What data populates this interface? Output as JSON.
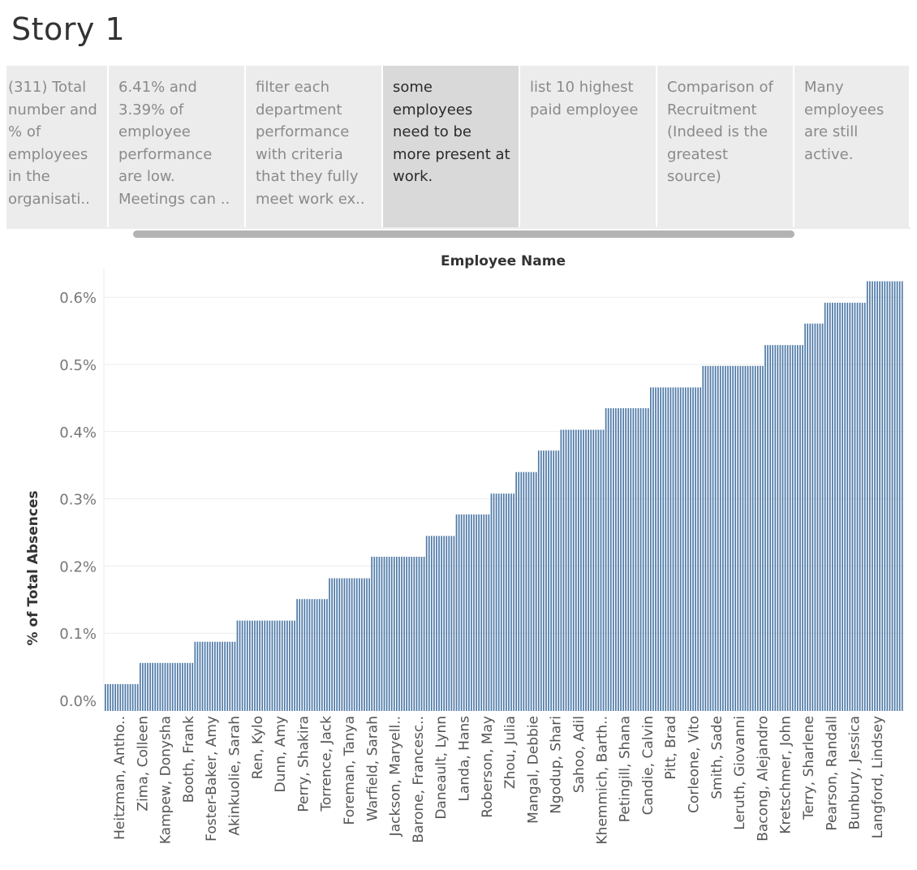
{
  "story": {
    "title": "Story 1",
    "points": [
      {
        "text": "(311) Total number and % of employees in the organisati..",
        "active": false
      },
      {
        "text": "6.41% and 3.39% of employee performance are low. Meetings can ..",
        "active": false
      },
      {
        "text": "filter each department performance with criteria that they fully meet work ex..",
        "active": false
      },
      {
        "text": "some employees need to be more present at work.",
        "active": true
      },
      {
        "text": "list 10 highest paid employee",
        "active": false
      },
      {
        "text": "Comparison of Recruitment (Indeed is the greatest source)",
        "active": false
      },
      {
        "text": "Many employees are still active.",
        "active": false
      }
    ]
  },
  "colors": {
    "bar": "#4e79a7",
    "grid": "#ececec",
    "nav_bg": "#ececec",
    "nav_active": "#d9d9d9"
  },
  "chart_data": {
    "type": "bar",
    "title": "",
    "xlabel": "Employee Name",
    "ylabel": "% of Total Absences",
    "ylim": [
      0,
      0.0066
    ],
    "yticks": [
      {
        "value": 0.0,
        "label": "0.0%"
      },
      {
        "value": 0.001,
        "label": "0.1%"
      },
      {
        "value": 0.002,
        "label": "0.2%"
      },
      {
        "value": 0.003,
        "label": "0.3%"
      },
      {
        "value": 0.004,
        "label": "0.4%"
      },
      {
        "value": 0.005,
        "label": "0.5%"
      },
      {
        "value": 0.006,
        "label": "0.6%"
      }
    ],
    "grid": true,
    "bar_groups": [
      {
        "value": 0.000315,
        "count": 14
      },
      {
        "value": 0.00063,
        "count": 22
      },
      {
        "value": 0.000945,
        "count": 17
      },
      {
        "value": 0.00126,
        "count": 24
      },
      {
        "value": 0.00158,
        "count": 13
      },
      {
        "value": 0.00189,
        "count": 17
      },
      {
        "value": 0.00221,
        "count": 22
      },
      {
        "value": 0.00252,
        "count": 12
      },
      {
        "value": 0.00284,
        "count": 14
      },
      {
        "value": 0.00315,
        "count": 10
      },
      {
        "value": 0.00347,
        "count": 9
      },
      {
        "value": 0.00379,
        "count": 9
      },
      {
        "value": 0.0041,
        "count": 18
      },
      {
        "value": 0.00442,
        "count": 18
      },
      {
        "value": 0.00473,
        "count": 21
      },
      {
        "value": 0.00505,
        "count": 25
      },
      {
        "value": 0.00536,
        "count": 16
      },
      {
        "value": 0.00568,
        "count": 8
      },
      {
        "value": 0.00599,
        "count": 17
      },
      {
        "value": 0.00631,
        "count": 15
      }
    ],
    "category_labels": [
      "Heitzman, Antho..",
      "Zima, Colleen",
      "Kampew, Donysha",
      "Booth, Frank",
      "Foster-Baker, Amy",
      "Akinkuolie, Sarah",
      "Ren, Kylo",
      "Dunn, Amy",
      "Perry, Shakira",
      "Torrence, Jack",
      "Foreman, Tanya",
      "Warfield, Sarah",
      "Jackson, Maryell..",
      "Barone, Francesc..",
      "Daneault, Lynn",
      "Landa, Hans",
      "Roberson, May",
      "Zhou, Julia",
      "Mangal, Debbie",
      "Ngodup, Shari",
      "Sahoo, Adil",
      "Khemmich, Barth..",
      "Petingill, Shana",
      "Candie, Calvin",
      "Pitt, Brad",
      "Corleone, Vito",
      "Smith, Sade",
      "Leruth, Giovanni",
      "Bacong, Alejandro",
      "Kretschmer, John",
      "Terry, Sharlene",
      "Pearson, Randall",
      "Bunbury, Jessica",
      "Langford, Lindsey"
    ]
  }
}
